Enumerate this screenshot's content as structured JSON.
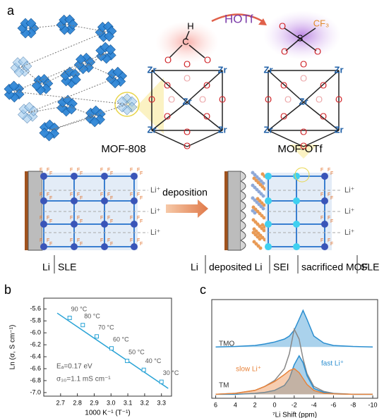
{
  "panel_labels": [
    "a",
    "b",
    "c"
  ],
  "diagram": {
    "hotf": "HOTf",
    "mof808": "MOF-808",
    "mofotf": "MOF-OTf",
    "deposition": "deposition",
    "zr": "Zr",
    "o": "O",
    "c": "C",
    "h": "H",
    "s": "S",
    "cf3": "CF₃",
    "f": "F",
    "li_plus": "Li⁺",
    "left_caption": [
      "Li",
      "SLE"
    ],
    "right_caption": [
      "Li",
      "deposited Li",
      "SEI",
      "sacrificed MOF",
      "SLE"
    ]
  },
  "chart_data": [
    {
      "type": "scatter",
      "xlabel": "1000 K⁻¹ (T⁻¹)",
      "ylabel": "Ln (σ, S cm⁻¹)",
      "x": [
        2.754,
        2.832,
        2.915,
        3.003,
        3.096,
        3.195,
        3.3
      ],
      "values": [
        -5.75,
        -5.87,
        -6.06,
        -6.26,
        -6.47,
        -6.62,
        -6.82
      ],
      "point_labels": [
        "90 °C",
        "80 °C",
        "70 °C",
        "60 °C",
        "50 °C",
        "40 °C",
        "30 °C"
      ],
      "color": "#29a3d6",
      "fit": {
        "x": [
          2.68,
          3.34
        ],
        "values": [
          -5.67,
          -6.93
        ]
      },
      "annotations": [
        "Eₐ=0.17 eV",
        "σ₃₀=1.1 mS cm⁻¹"
      ],
      "xlim": [
        2.6,
        3.36
      ],
      "xticks": [
        2.7,
        2.8,
        2.9,
        {
          "value": 3,
          "label": "3.0"
        },
        3.1,
        3.2,
        3.3
      ],
      "ylim": [
        -7.06,
        -5.42
      ],
      "yticks": [
        -5.6,
        -5.8,
        {
          "value": -6,
          "label": "-6.0"
        },
        -6.2,
        -6.4,
        -6.6,
        -6.8,
        {
          "value": -7,
          "label": "-7.0"
        }
      ]
    },
    {
      "type": "line",
      "xlabel": "⁷Li Shift (ppm)",
      "x": [
        6,
        4,
        2,
        1,
        0,
        -1,
        -1.5,
        -2,
        -2.5,
        -2.9,
        -3.3,
        -4,
        -5,
        -6,
        -8,
        -10
      ],
      "series": [
        {
          "name": "TMO",
          "color": "#2a8ed0",
          "fill": true,
          "values": [
            5.2,
            5.25,
            5.35,
            5.5,
            5.7,
            6.0,
            6.3,
            6.9,
            8.0,
            8.9,
            8.0,
            6.3,
            5.6,
            5.35,
            5.25,
            5.2
          ]
        },
        {
          "name": "TM",
          "color": "#888888",
          "fill": false,
          "values": [
            0.4,
            0.5,
            0.8,
            1.2,
            1.8,
            3.0,
            4.5,
            7.0,
            6.0,
            4.0,
            2.5,
            1.2,
            0.7,
            0.5,
            0.4,
            0.4
          ]
        },
        {
          "name": "fast Li⁺",
          "color": "#2a8ed0",
          "fill": true,
          "values": [
            0.4,
            0.4,
            0.5,
            0.6,
            0.8,
            1.3,
            2.0,
            3.4,
            4.3,
            3.6,
            2.3,
            1.0,
            0.6,
            0.45,
            0.4,
            0.4
          ]
        },
        {
          "name": "slow Li⁺",
          "color": "#e8833a",
          "fill": true,
          "values": [
            0.4,
            0.5,
            0.8,
            1.2,
            1.7,
            2.4,
            2.8,
            3.0,
            2.6,
            2.0,
            1.4,
            0.8,
            0.5,
            0.45,
            0.4,
            0.4
          ]
        }
      ],
      "xlim": [
        6.4,
        -10.5
      ],
      "xticks": [
        6,
        4,
        2,
        0,
        -2,
        -4,
        -6,
        -8,
        -10
      ],
      "ylim": [
        0,
        10
      ]
    }
  ]
}
